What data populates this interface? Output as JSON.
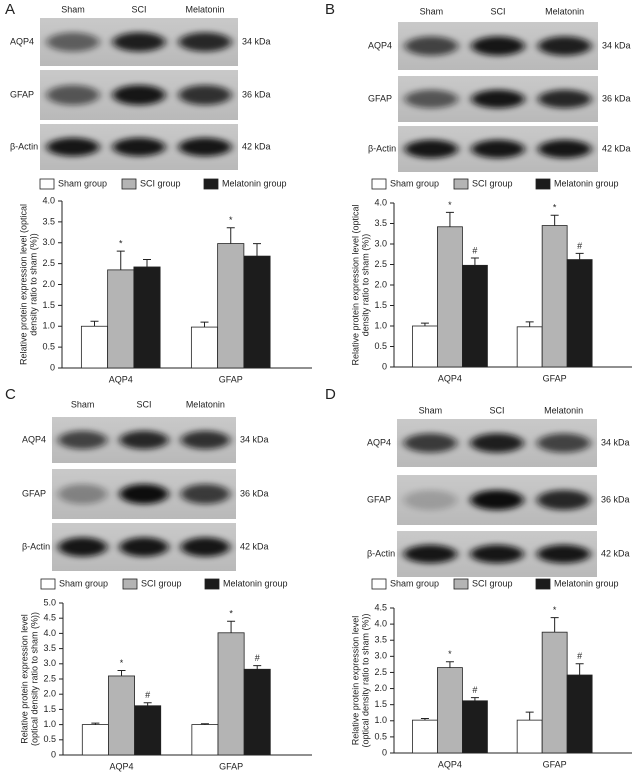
{
  "chart_data": [
    {
      "type": "bar",
      "panel": "A",
      "lanes": [
        "Sham",
        "SCI",
        "Melatonin"
      ],
      "blot": [
        {
          "name": "AQP4",
          "size": "34 kDa"
        },
        {
          "name": "GFAP",
          "size": "36 kDa"
        },
        {
          "name": "β-Actin",
          "size": "42 kDa"
        }
      ],
      "ylabel": [
        "Relative protein expression level (optical",
        "density ratio to sham (%))"
      ],
      "categories": [
        "AQP4",
        "GFAP"
      ],
      "series": [
        {
          "name": "Sham group",
          "color": "#ffffff",
          "values": [
            1.0,
            0.98
          ],
          "errors": [
            0.12,
            0.12
          ]
        },
        {
          "name": "SCI group",
          "color": "#b4b4b4",
          "values": [
            2.35,
            2.98
          ],
          "errors": [
            0.45,
            0.38
          ],
          "markers": [
            "*",
            "*"
          ]
        },
        {
          "name": "Melatonin group",
          "color": "#1c1c1c",
          "values": [
            2.42,
            2.68
          ],
          "errors": [
            0.18,
            0.3
          ]
        }
      ],
      "ylim": [
        0,
        4
      ],
      "yticks": [
        0,
        0.5,
        {
          "value": 1,
          "label": "1.0"
        },
        1.5,
        {
          "value": 2,
          "label": "2.0"
        },
        2.5,
        {
          "value": 3,
          "label": "3.0"
        },
        3.5,
        {
          "value": 4,
          "label": "4.0"
        }
      ]
    },
    {
      "type": "bar",
      "panel": "B",
      "lanes": [
        "Sham",
        "SCI",
        "Melatonin"
      ],
      "blot": [
        {
          "name": "AQP4",
          "size": "34 kDa"
        },
        {
          "name": "GFAP",
          "size": "36 kDa"
        },
        {
          "name": "β-Actin",
          "size": "42 kDa"
        }
      ],
      "ylabel": [
        "Relative protein expression level (optical",
        "density ratio to sham (%))"
      ],
      "categories": [
        "AQP4",
        "GFAP"
      ],
      "series": [
        {
          "name": "Sham group",
          "color": "#ffffff",
          "values": [
            1.0,
            0.98
          ],
          "errors": [
            0.07,
            0.12
          ]
        },
        {
          "name": "SCI group",
          "color": "#b4b4b4",
          "values": [
            3.42,
            3.45
          ],
          "errors": [
            0.35,
            0.25
          ],
          "markers": [
            "*",
            "*"
          ]
        },
        {
          "name": "Melatonin group",
          "color": "#1c1c1c",
          "values": [
            2.48,
            2.62
          ],
          "errors": [
            0.18,
            0.15
          ],
          "markers": [
            "#",
            "#"
          ]
        }
      ],
      "ylim": [
        0,
        4
      ],
      "yticks": [
        0,
        0.5,
        {
          "value": 1,
          "label": "1.0"
        },
        1.5,
        {
          "value": 2,
          "label": "2.0"
        },
        2.5,
        {
          "value": 3,
          "label": "3.0"
        },
        3.5,
        {
          "value": 4,
          "label": "4.0"
        }
      ]
    },
    {
      "type": "bar",
      "panel": "C",
      "lanes": [
        "Sham",
        "SCI",
        "Melatonin"
      ],
      "blot": [
        {
          "name": "AQP4",
          "size": "34 kDa"
        },
        {
          "name": "GFAP",
          "size": "36 kDa"
        },
        {
          "name": "β-Actin",
          "size": "42 kDa"
        }
      ],
      "ylabel": [
        "Relative protein expression level",
        "(optical density ratio to sham (%))"
      ],
      "categories": [
        "AQP4",
        "GFAP"
      ],
      "series": [
        {
          "name": "Sham group",
          "color": "#ffffff",
          "values": [
            1.0,
            1.0
          ],
          "errors": [
            0.05,
            0.03
          ]
        },
        {
          "name": "SCI group",
          "color": "#b4b4b4",
          "values": [
            2.6,
            4.02
          ],
          "errors": [
            0.18,
            0.38
          ],
          "markers": [
            "*",
            "*"
          ]
        },
        {
          "name": "Melatonin group",
          "color": "#1c1c1c",
          "values": [
            1.62,
            2.82
          ],
          "errors": [
            0.1,
            0.12
          ],
          "markers": [
            "#",
            "#"
          ]
        }
      ],
      "ylim": [
        0,
        5
      ],
      "yticks": [
        0,
        0.5,
        {
          "value": 1,
          "label": "1.0"
        },
        1.5,
        {
          "value": 2,
          "label": "2.0"
        },
        2.5,
        {
          "value": 3,
          "label": "3.0"
        },
        3.5,
        {
          "value": 4,
          "label": "4.0"
        },
        4.5,
        {
          "value": 5,
          "label": "5.0"
        }
      ]
    },
    {
      "type": "bar",
      "panel": "D",
      "lanes": [
        "Sham",
        "SCI",
        "Melatonin"
      ],
      "blot": [
        {
          "name": "AQP4",
          "size": "34 kDa"
        },
        {
          "name": "GFAP",
          "size": "36 kDa"
        },
        {
          "name": "β-Actin",
          "size": "42 kDa"
        }
      ],
      "ylabel": [
        "Relative protein expression level",
        "(optical density ratio to sham (%))"
      ],
      "categories": [
        "AQP4",
        "GFAP"
      ],
      "series": [
        {
          "name": "Sham group",
          "color": "#ffffff",
          "values": [
            1.02,
            1.02
          ],
          "errors": [
            0.05,
            0.25
          ]
        },
        {
          "name": "SCI group",
          "color": "#b4b4b4",
          "values": [
            2.65,
            3.75
          ],
          "errors": [
            0.18,
            0.45
          ],
          "markers": [
            "*",
            "*"
          ]
        },
        {
          "name": "Melatonin group",
          "color": "#1c1c1c",
          "values": [
            1.62,
            2.42
          ],
          "errors": [
            0.1,
            0.35
          ],
          "markers": [
            "#",
            "#"
          ]
        }
      ],
      "ylim": [
        0,
        4.5
      ],
      "yticks": [
        0,
        0.5,
        {
          "value": 1,
          "label": "1.0"
        },
        1.5,
        {
          "value": 2,
          "label": "2.0"
        },
        2.5,
        {
          "value": 3,
          "label": "3.0"
        },
        3.5,
        {
          "value": 4,
          "label": "4.0"
        },
        4.5
      ]
    }
  ]
}
